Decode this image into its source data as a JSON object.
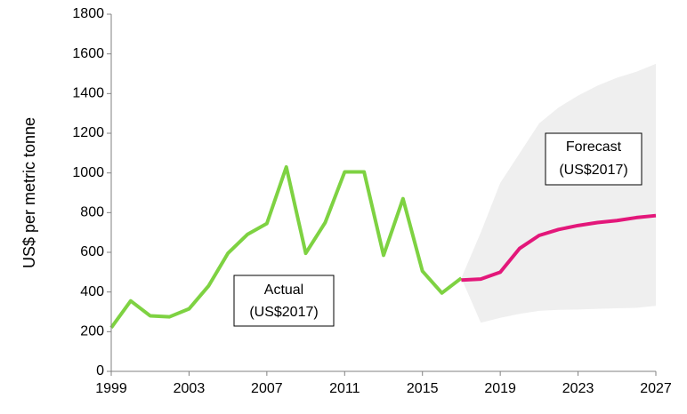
{
  "chart_data": {
    "type": "line",
    "y_label": "US$ per metric tonne",
    "x": [
      1999,
      2000,
      2001,
      2002,
      2003,
      2004,
      2005,
      2006,
      2007,
      2008,
      2009,
      2010,
      2011,
      2012,
      2013,
      2014,
      2015,
      2016,
      2017,
      2018,
      2019,
      2020,
      2021,
      2022,
      2023,
      2024,
      2025,
      2026,
      2027
    ],
    "series": [
      {
        "color": "#7ed242",
        "values": [
          220,
          355,
          280,
          275,
          315,
          430,
          595,
          690,
          745,
          1030,
          595,
          750,
          1005,
          1005,
          585,
          870,
          505,
          395,
          470,
          null,
          null,
          null,
          null,
          null,
          null,
          null,
          null,
          null,
          null
        ]
      },
      {
        "color": "#e3177a",
        "values": [
          null,
          null,
          null,
          null,
          null,
          null,
          null,
          null,
          null,
          null,
          null,
          null,
          null,
          null,
          null,
          null,
          null,
          null,
          460,
          465,
          500,
          620,
          685,
          715,
          735,
          750,
          760,
          775,
          785
        ]
      }
    ],
    "band": {
      "color": "#efefef",
      "upper": [
        null,
        null,
        null,
        null,
        null,
        null,
        null,
        null,
        null,
        null,
        null,
        null,
        null,
        null,
        null,
        null,
        null,
        null,
        470,
        700,
        950,
        1100,
        1250,
        1330,
        1390,
        1440,
        1480,
        1510,
        1550
      ],
      "lower": [
        null,
        null,
        null,
        null,
        null,
        null,
        null,
        null,
        null,
        null,
        null,
        null,
        null,
        null,
        null,
        null,
        null,
        null,
        470,
        245,
        270,
        290,
        305,
        310,
        312,
        315,
        318,
        320,
        330
      ]
    },
    "annotations": [
      {
        "text": [
          "Actual",
          "(US$2017)"
        ]
      },
      {
        "text": [
          "Forecast",
          "(US$2017)"
        ]
      }
    ],
    "xlim": [
      1999,
      2027
    ],
    "xticks": [
      1999,
      2003,
      2007,
      2011,
      2015,
      2019,
      2023,
      2027
    ],
    "ylim": [
      0,
      1800
    ],
    "yticks": [
      0,
      200,
      400,
      600,
      800,
      1000,
      1200,
      1400,
      1600,
      1800
    ]
  }
}
